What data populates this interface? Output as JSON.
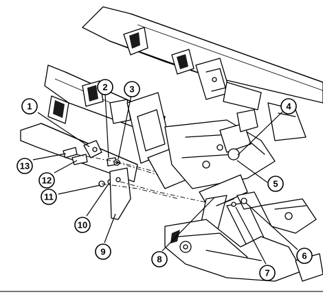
{
  "callouts": [
    {
      "label": "1"
    },
    {
      "label": "2"
    },
    {
      "label": "3"
    },
    {
      "label": "4"
    },
    {
      "label": "5"
    },
    {
      "label": "6"
    },
    {
      "label": "7"
    },
    {
      "label": "8"
    },
    {
      "label": "9"
    },
    {
      "label": "10"
    },
    {
      "label": "11"
    },
    {
      "label": "12"
    },
    {
      "label": "13"
    }
  ]
}
